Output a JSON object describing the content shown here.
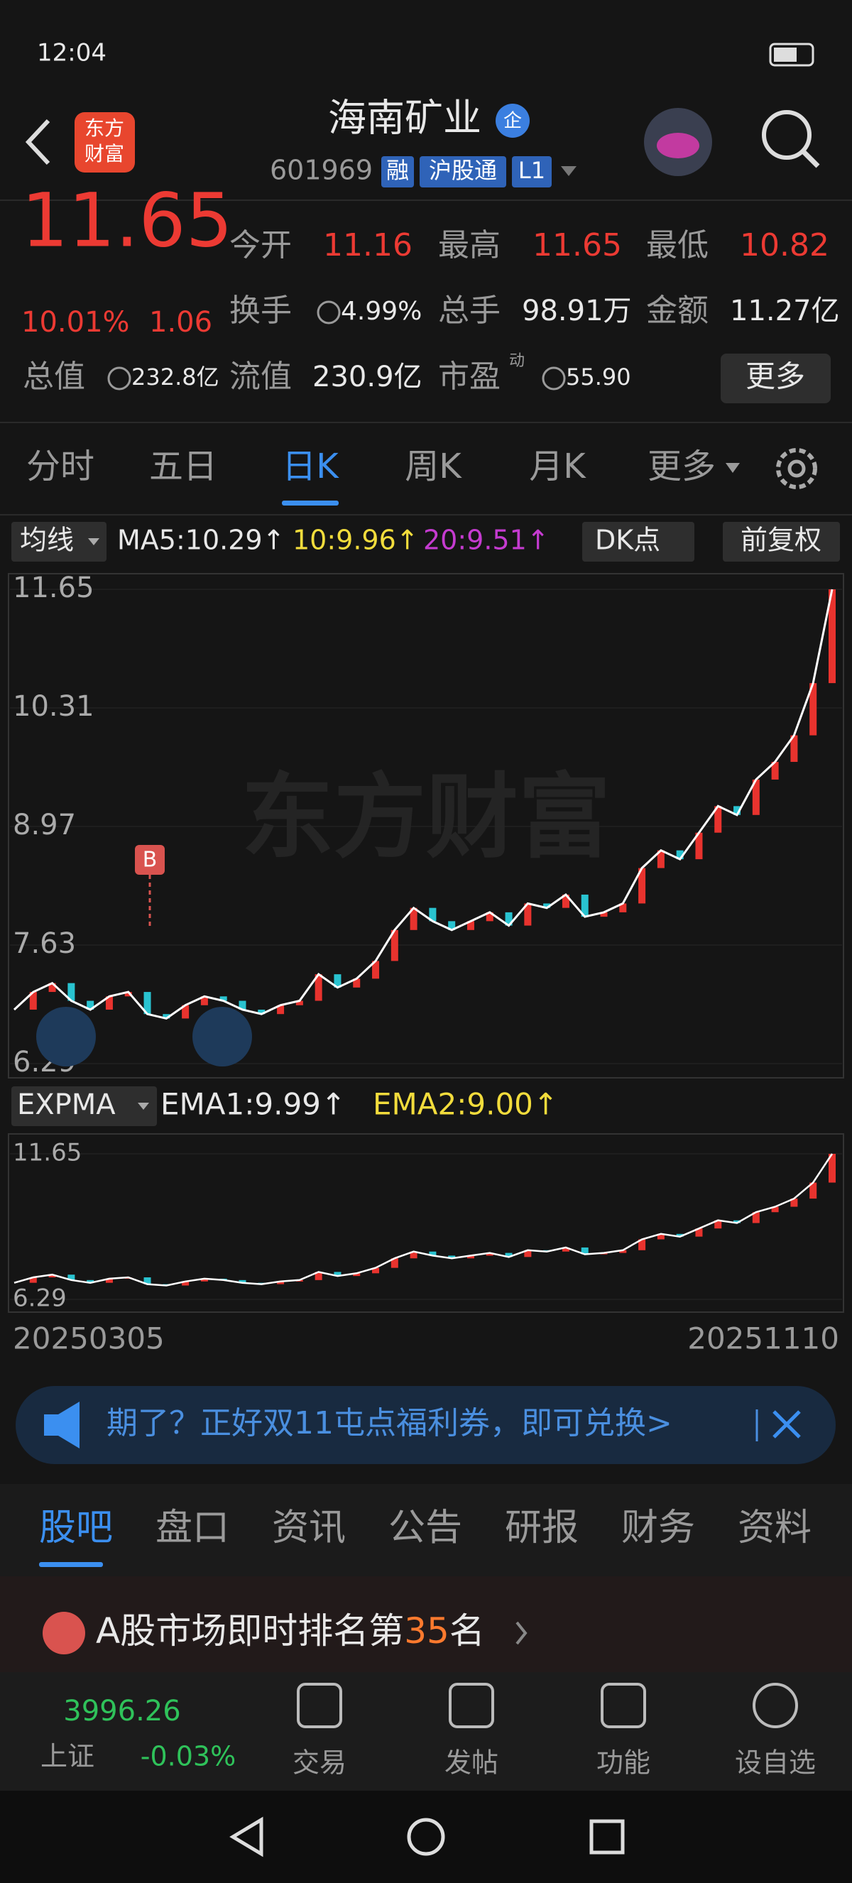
{
  "status_bar": {
    "time": "12:04"
  },
  "header": {
    "title": "海南矿业",
    "badge": "企",
    "code": "601969",
    "tags": [
      "融",
      "沪股通",
      "L1"
    ],
    "logo": [
      "东方",
      "财富"
    ]
  },
  "quote": {
    "price": "11.65",
    "change_pct": "10.01%",
    "change": "1.06",
    "fields": [
      {
        "label": "今开",
        "value": "11.16"
      },
      {
        "label": "最高",
        "value": "11.65"
      },
      {
        "label": "最低",
        "value": "10.82"
      },
      {
        "label": "换手",
        "value": "4.99%"
      },
      {
        "label": "总手",
        "value": "98.91万"
      },
      {
        "label": "金额",
        "value": "11.27亿"
      },
      {
        "label": "总值",
        "value": "232.8亿"
      },
      {
        "label": "流值",
        "value": "230.9亿"
      },
      {
        "label": "市盈",
        "sup": "动",
        "value": "55.90"
      }
    ],
    "more": "更多"
  },
  "period_tabs": [
    "分时",
    "五日",
    "日K",
    "周K",
    "月K",
    "更多"
  ],
  "indicator_bar": {
    "selector": "均线",
    "ma5": "MA5:10.29↑",
    "ma10": "10:9.96↑",
    "ma20": "20:9.51↑",
    "dk": "DK点",
    "adjust": "前复权"
  },
  "chart": {
    "type": "line",
    "watermark": "东方财富",
    "marker": "B",
    "color": "#ffffff",
    "ylim": [
      6.29,
      11.65
    ],
    "yticks": [
      11.65,
      10.31,
      8.97,
      7.63,
      6.29
    ],
    "values": [
      6.9,
      7.1,
      7.2,
      7.0,
      6.9,
      7.05,
      7.1,
      6.85,
      6.8,
      6.95,
      7.05,
      7.0,
      6.9,
      6.85,
      6.95,
      7.0,
      7.3,
      7.15,
      7.25,
      7.45,
      7.8,
      8.05,
      7.9,
      7.8,
      7.9,
      8.0,
      7.85,
      8.1,
      8.05,
      8.2,
      7.95,
      8.0,
      8.1,
      8.5,
      8.7,
      8.6,
      8.9,
      9.2,
      9.1,
      9.5,
      9.7,
      10.0,
      10.59,
      11.65
    ]
  },
  "sub_bar": {
    "selector": "EXPMA",
    "ema1": "EMA1:9.99↑",
    "ema2": "EMA2:9.00↑"
  },
  "sub_chart": {
    "type": "line",
    "ylim": [
      6.29,
      11.65
    ],
    "yticks": [
      11.65,
      6.29
    ]
  },
  "date_range": [
    "20250305",
    "20251110"
  ],
  "banner": "期了？正好双11屯点福利券，即可兑换>",
  "section_tabs": [
    "股吧",
    "盘口",
    "资讯",
    "公告",
    "研报",
    "财务",
    "资料"
  ],
  "ranking": {
    "prefix": "A股市场即时排名第",
    "rank": 35,
    "suffix": "名"
  },
  "bottom_nav": {
    "index_value": "3996.26",
    "index_name": "上证",
    "index_change": "-0.03%",
    "items": [
      "交易",
      "发帖",
      "功能",
      "设自选"
    ]
  }
}
